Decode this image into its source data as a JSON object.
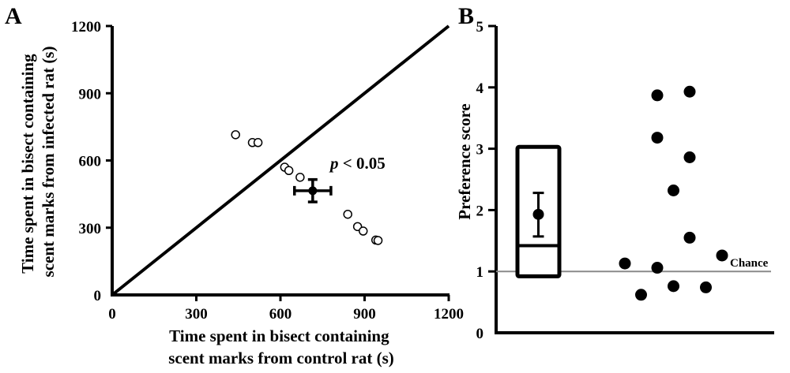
{
  "chart_data": [
    {
      "type": "scatter",
      "panel_label": "A",
      "xlabel_lines": [
        "Time spent in bisect containing",
        "scent marks from control rat (s)"
      ],
      "ylabel_lines": [
        "Time spent in bisect containing",
        "scent marks from infected rat (s)"
      ],
      "xlim": [
        0,
        1200
      ],
      "ylim": [
        0,
        1200
      ],
      "xticks": [
        0,
        300,
        600,
        900,
        1200
      ],
      "yticks": [
        0,
        300,
        600,
        900,
        1200
      ],
      "identity_line": true,
      "annotation": "p < 0.05",
      "points": [
        {
          "x": 440,
          "y": 715
        },
        {
          "x": 500,
          "y": 680
        },
        {
          "x": 520,
          "y": 680
        },
        {
          "x": 615,
          "y": 570
        },
        {
          "x": 630,
          "y": 555
        },
        {
          "x": 670,
          "y": 525
        },
        {
          "x": 840,
          "y": 360
        },
        {
          "x": 875,
          "y": 305
        },
        {
          "x": 895,
          "y": 285
        },
        {
          "x": 940,
          "y": 245
        },
        {
          "x": 948,
          "y": 243
        }
      ],
      "mean": {
        "x": 715,
        "y": 465,
        "x_err": 65,
        "y_err": 50
      }
    },
    {
      "type": "scatter",
      "panel_label": "B",
      "ylabel": "Preference score",
      "ylim": [
        0,
        5
      ],
      "yticks": [
        0,
        1,
        2,
        3,
        4,
        5
      ],
      "reference_line": {
        "y": 1,
        "label": "Chance"
      },
      "points": [
        {
          "x": 1,
          "y": 1.13
        },
        {
          "x": 2,
          "y": 0.62
        },
        {
          "x": 3,
          "y": 3.87
        },
        {
          "x": 3,
          "y": 3.18
        },
        {
          "x": 3,
          "y": 1.06
        },
        {
          "x": 4,
          "y": 2.32
        },
        {
          "x": 4,
          "y": 0.76
        },
        {
          "x": 5,
          "y": 3.93
        },
        {
          "x": 5,
          "y": 2.86
        },
        {
          "x": 5,
          "y": 1.55
        },
        {
          "x": 6,
          "y": 0.74
        },
        {
          "x": 7,
          "y": 1.26
        }
      ],
      "box": {
        "low": 0.92,
        "high": 3.03,
        "median": 1.42,
        "mean": 1.93,
        "err_low": 1.57,
        "err_high": 2.28
      }
    }
  ]
}
